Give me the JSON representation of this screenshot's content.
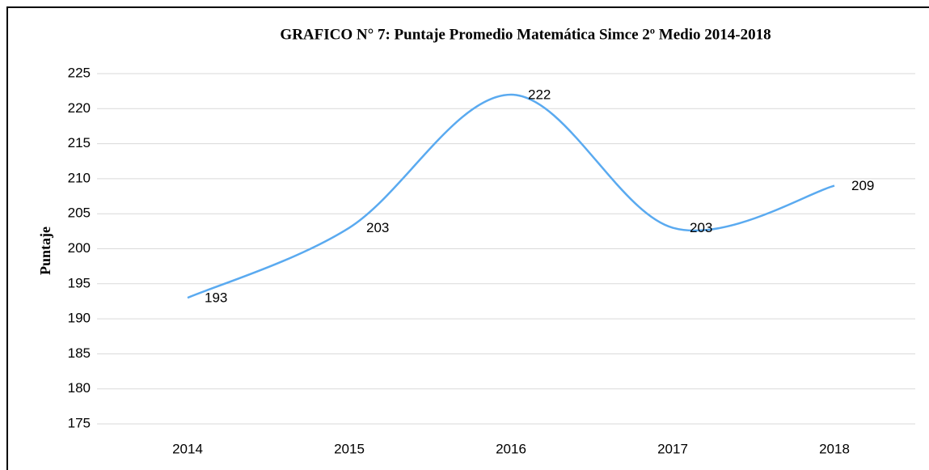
{
  "chart_data": {
    "type": "line",
    "title": "GRAFICO N° 7: Puntaje Promedio Matemática Simce 2º Medio 2014-2018",
    "y_label": "Puntaje",
    "categories": [
      "2014",
      "2015",
      "2016",
      "2017",
      "2018"
    ],
    "values": [
      193,
      203,
      222,
      203,
      209
    ],
    "color": "#5aaaf0",
    "ylim": [
      175,
      225
    ],
    "yticks": [
      175,
      180,
      185,
      190,
      195,
      200,
      205,
      210,
      215,
      220,
      225
    ],
    "grid": true,
    "smooth": true
  }
}
